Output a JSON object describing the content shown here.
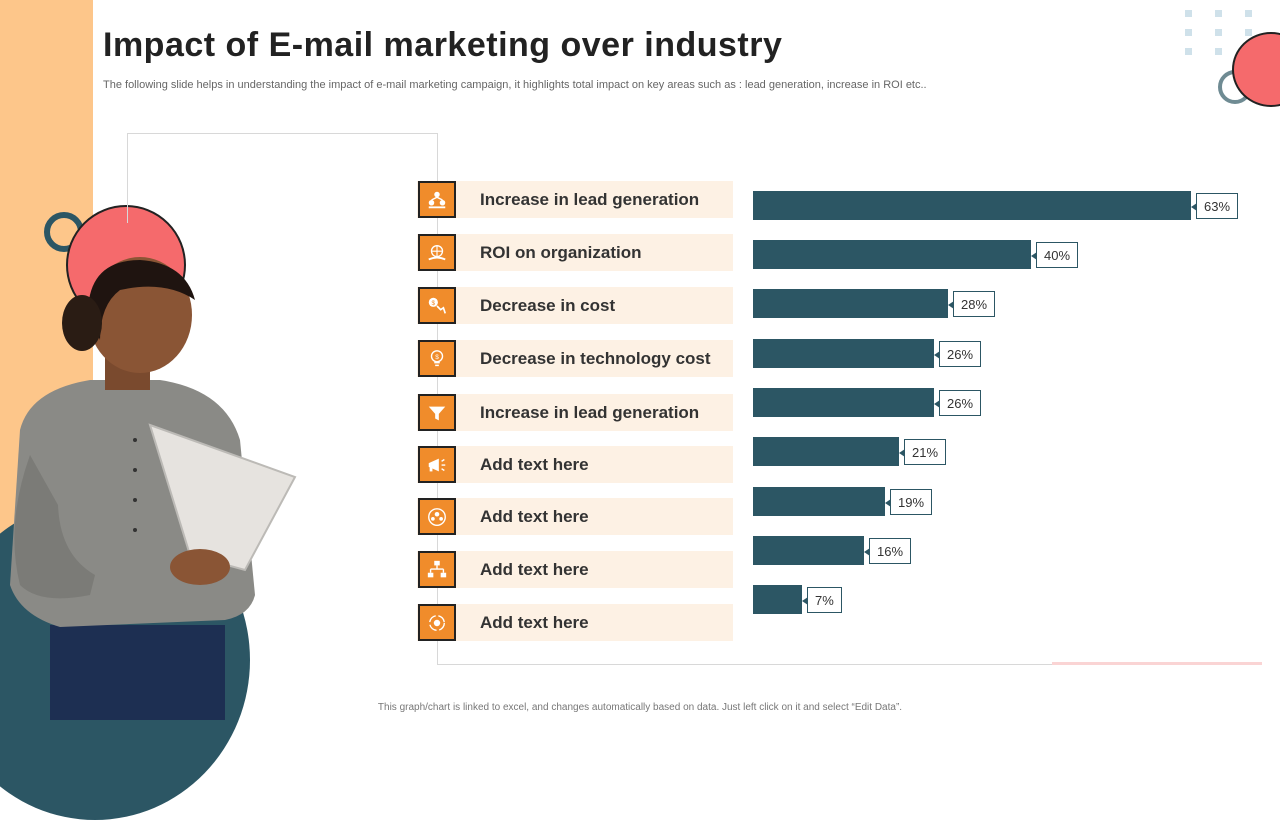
{
  "slide": {
    "title": "Impact of E-mail marketing over industry",
    "subtitle": "The following slide helps in understanding the impact of e-mail marketing campaign, it highlights total impact on key areas such as : lead generation, increase in ROI etc..",
    "footer": "This graph/chart is linked to excel, and changes automatically based on data. Just left click on it and select “Edit Data”."
  },
  "colors": {
    "accent_orange": "#f08c2b",
    "bar_teal": "#2c5664",
    "row_background": "#fdf1e4",
    "left_strip": "#fdc68a",
    "pink": "#f56a6c"
  },
  "icons": [
    "people-network-icon",
    "globe-hand-icon",
    "dollar-down-icon",
    "coin-bulb-icon",
    "funnel-icon",
    "megaphone-icon",
    "team-circle-icon",
    "hierarchy-icon",
    "recycle-gear-icon"
  ],
  "chart_data": {
    "type": "bar",
    "orientation": "horizontal",
    "categories": [
      "Increase in lead generation",
      "ROI on organization",
      "Decrease in cost",
      "Decrease in technology cost",
      "Increase in lead generation",
      "Add text here",
      "Add text here",
      "Add text here",
      "Add text here"
    ],
    "values": [
      63,
      40,
      28,
      26,
      26,
      21,
      19,
      16,
      7
    ],
    "value_labels": [
      "63%",
      "40%",
      "28%",
      "26%",
      "26%",
      "21%",
      "19%",
      "16%",
      "7%"
    ],
    "unit": "%",
    "xlim": [
      0,
      70
    ],
    "grid": false,
    "legend": "none"
  }
}
